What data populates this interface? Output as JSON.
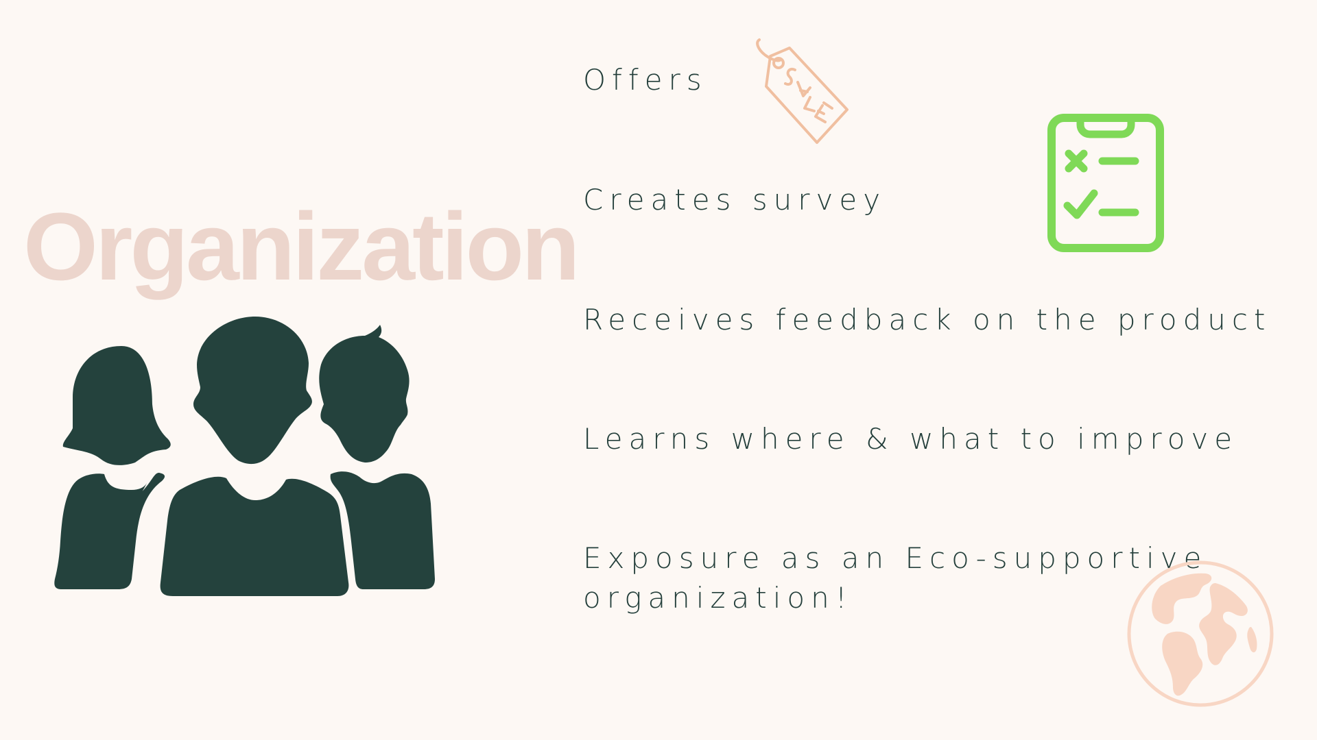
{
  "slide": {
    "title": "Organization",
    "items": [
      {
        "lines": [
          "Offers"
        ]
      },
      {
        "lines": [
          "Creates survey"
        ]
      },
      {
        "lines": [
          "Receives feedback on the product"
        ]
      },
      {
        "lines": [
          "Learns where & what to improve"
        ]
      },
      {
        "lines": [
          "Exposure as an Eco-supportive",
          "organization!"
        ]
      }
    ]
  },
  "icons": {
    "people": "group-of-people-icon",
    "sale": "sale-tag-icon",
    "checklist": "clipboard-checklist-icon",
    "globe": "globe-icon"
  },
  "colors": {
    "background": "#fdf8f4",
    "title": "#ecd5cc",
    "text": "#243f3b",
    "people": "#24423d",
    "sale_tag": "#f0bfa0",
    "checklist": "#7fd957",
    "globe": "#f8d6c4"
  }
}
